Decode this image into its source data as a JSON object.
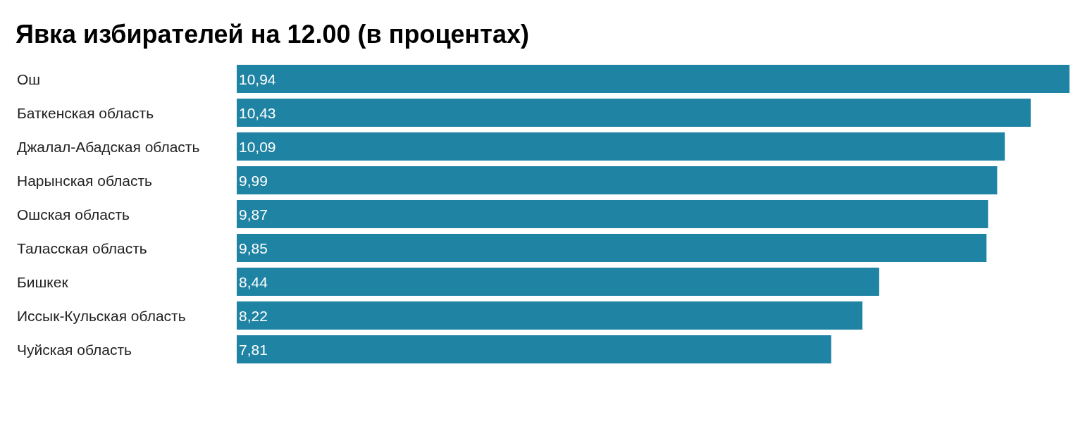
{
  "chart_data": {
    "type": "bar",
    "orientation": "horizontal",
    "title": "Явка избирателей на 12.00 (в процентах)",
    "categories": [
      "Ош",
      "Баткенская область",
      "Джалал-Абадская область",
      "Нарынская область",
      "Ошская область",
      "Таласская область",
      "Бишкек",
      "Иссык-Кульская область",
      "Чуйская область"
    ],
    "values": [
      10.94,
      10.43,
      10.09,
      9.99,
      9.87,
      9.85,
      8.44,
      8.22,
      7.81
    ],
    "value_labels": [
      "10,94",
      "10,43",
      "10,09",
      "9,99",
      "9,87",
      "9,85",
      "8,44",
      "8,22",
      "7,81"
    ],
    "color": "#1f83a3"
  }
}
